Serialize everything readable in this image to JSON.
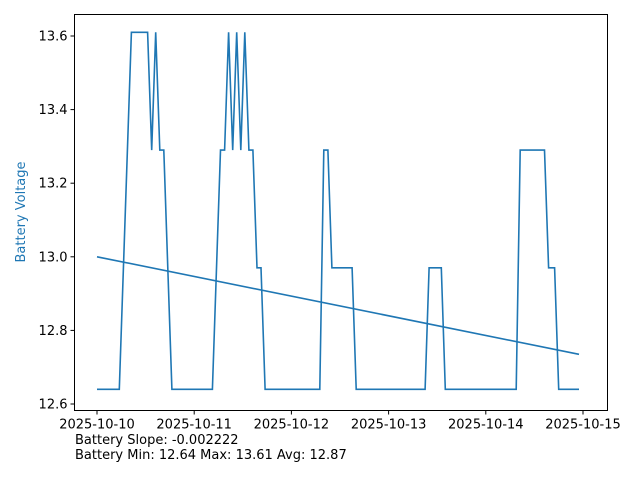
{
  "chart_data": {
    "type": "line",
    "ylabel": "Battery Voltage",
    "ylabel_color": "#1f77b4",
    "xlim": [
      "2025-10-10T00:00",
      "2025-10-15T00:00"
    ],
    "ylim": [
      12.6,
      13.66
    ],
    "x_ticks": [
      "2025-10-10",
      "2025-10-11",
      "2025-10-12",
      "2025-10-13",
      "2025-10-14",
      "2025-10-15"
    ],
    "y_ticks": [
      "12.6",
      "12.8",
      "13.0",
      "13.2",
      "13.4",
      "13.6"
    ],
    "grid": false,
    "series": [
      {
        "color": "#1f77b4",
        "points": [
          [
            "2025-10-10T00:00",
            12.64
          ],
          [
            "2025-10-10T05:30",
            12.64
          ],
          [
            "2025-10-10T08:30",
            13.61
          ],
          [
            "2025-10-10T12:30",
            13.61
          ],
          [
            "2025-10-10T13:30",
            13.29
          ],
          [
            "2025-10-10T14:30",
            13.61
          ],
          [
            "2025-10-10T15:30",
            13.29
          ],
          [
            "2025-10-10T16:30",
            13.29
          ],
          [
            "2025-10-10T18:30",
            12.64
          ],
          [
            "2025-10-11T04:30",
            12.64
          ],
          [
            "2025-10-11T06:30",
            13.29
          ],
          [
            "2025-10-11T07:30",
            13.29
          ],
          [
            "2025-10-11T08:30",
            13.61
          ],
          [
            "2025-10-11T09:30",
            13.29
          ],
          [
            "2025-10-11T10:30",
            13.61
          ],
          [
            "2025-10-11T11:30",
            13.29
          ],
          [
            "2025-10-11T12:30",
            13.61
          ],
          [
            "2025-10-11T13:30",
            13.29
          ],
          [
            "2025-10-11T14:30",
            13.29
          ],
          [
            "2025-10-11T15:30",
            12.97
          ],
          [
            "2025-10-11T16:30",
            12.97
          ],
          [
            "2025-10-11T17:30",
            12.64
          ],
          [
            "2025-10-12T07:00",
            12.64
          ],
          [
            "2025-10-12T08:00",
            13.29
          ],
          [
            "2025-10-12T09:00",
            13.29
          ],
          [
            "2025-10-12T10:00",
            12.97
          ],
          [
            "2025-10-12T15:00",
            12.97
          ],
          [
            "2025-10-12T16:00",
            12.64
          ],
          [
            "2025-10-13T09:00",
            12.64
          ],
          [
            "2025-10-13T10:00",
            12.97
          ],
          [
            "2025-10-13T13:00",
            12.97
          ],
          [
            "2025-10-13T14:00",
            12.64
          ],
          [
            "2025-10-14T07:30",
            12.64
          ],
          [
            "2025-10-14T08:30",
            13.29
          ],
          [
            "2025-10-14T14:30",
            13.29
          ],
          [
            "2025-10-14T15:30",
            12.97
          ],
          [
            "2025-10-14T17:00",
            12.97
          ],
          [
            "2025-10-14T18:00",
            12.64
          ],
          [
            "2025-10-14T23:00",
            12.64
          ]
        ]
      },
      {
        "color": "#1f77b4",
        "points": [
          [
            "2025-10-10T00:00",
            13.0
          ],
          [
            "2025-10-14T23:00",
            12.735
          ]
        ]
      }
    ]
  },
  "footer": {
    "slope_line": "Battery Slope: -0.002222",
    "stats_line": "Battery Min: 12.64 Max: 13.61 Avg: 12.87"
  }
}
